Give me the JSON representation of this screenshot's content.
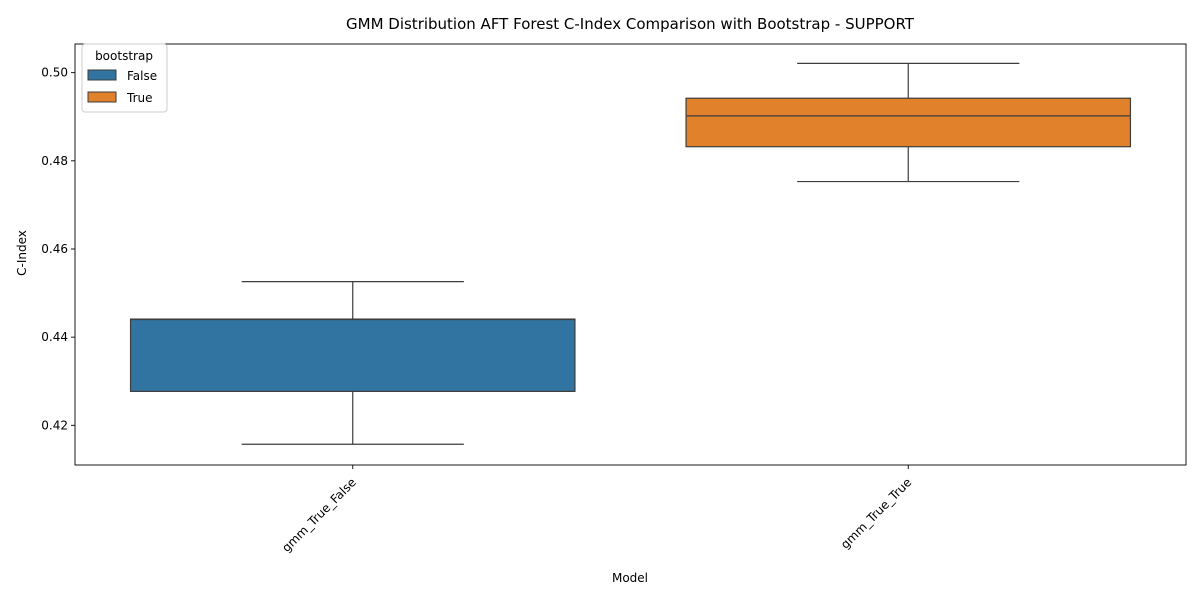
{
  "chart_data": {
    "type": "box",
    "title": "GMM Distribution AFT Forest C-Index Comparison with Bootstrap - SUPPORT",
    "xlabel": "Model",
    "ylabel": "C-Index",
    "categories": [
      "gmm_True_False",
      "gmm_True_True"
    ],
    "ylim": [
      0.411,
      0.5065
    ],
    "yticks": [
      0.42,
      0.44,
      0.46,
      0.48,
      0.5
    ],
    "ytick_labels": [
      "0.42",
      "0.44",
      "0.46",
      "0.48",
      "0.50"
    ],
    "grid": false,
    "legend": {
      "title": "bootstrap",
      "placement": "top-left",
      "entries": [
        "False",
        "True"
      ]
    },
    "series": [
      {
        "name": "False",
        "color": "#3274a1",
        "category": "gmm_True_False",
        "whisker_low": 0.4157,
        "q1": 0.4277,
        "median": 0.444,
        "q3": 0.4441,
        "whisker_high": 0.4526
      },
      {
        "name": "True",
        "color": "#e1812c",
        "category": "gmm_True_True",
        "whisker_low": 0.4753,
        "q1": 0.4832,
        "median": 0.4902,
        "q3": 0.4942,
        "whisker_high": 0.5021
      }
    ]
  }
}
